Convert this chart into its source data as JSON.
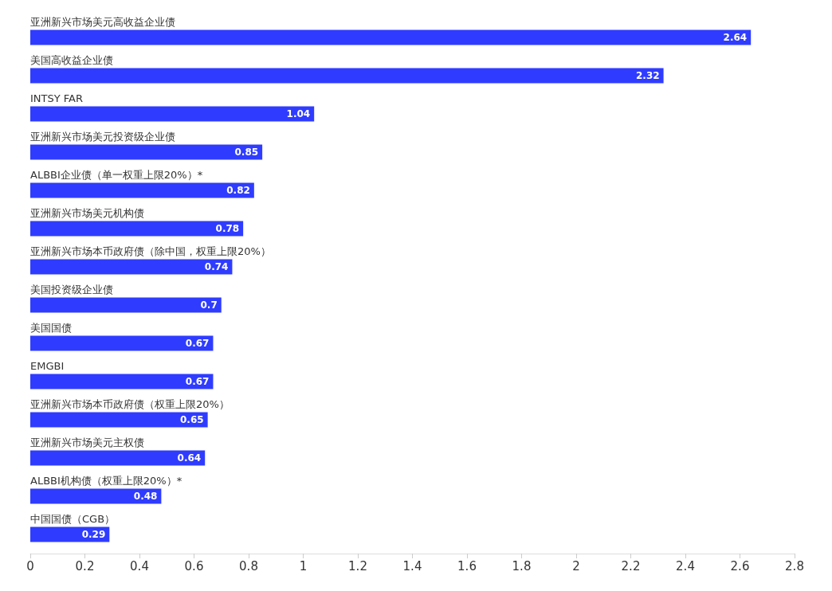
{
  "chart_data": {
    "type": "bar",
    "orientation": "horizontal",
    "categories": [
      "亚洲新兴市场美元高收益企业债",
      "美国高收益企业债",
      "INTSY FAR",
      "亚洲新兴市场美元投资级企业债",
      "ALBBI企业债（单一权重上限20%）*",
      "亚洲新兴市场美元机构债",
      "亚洲新兴市场本币政府债（除中国，权重上限20%）",
      "美国投资级企业债",
      "美国国债",
      "EMGBI",
      "亚洲新兴市场本币政府债（权重上限20%）",
      "亚洲新兴市场美元主权债",
      "ALBBI机构债（权重上限20%）*",
      "中国国债（CGB）"
    ],
    "values": [
      2.64,
      2.32,
      1.04,
      0.85,
      0.82,
      0.78,
      0.74,
      0.7,
      0.67,
      0.67,
      0.65,
      0.64,
      0.48,
      0.29
    ],
    "color": "#2f3cff",
    "xlim": [
      0,
      2.8
    ],
    "xticks": [
      0,
      0.2,
      0.4,
      0.6,
      0.8,
      1,
      1.2,
      1.4,
      1.6,
      1.8,
      2,
      2.2,
      2.4,
      2.6,
      2.8
    ],
    "data_labels": true,
    "grid": false
  }
}
